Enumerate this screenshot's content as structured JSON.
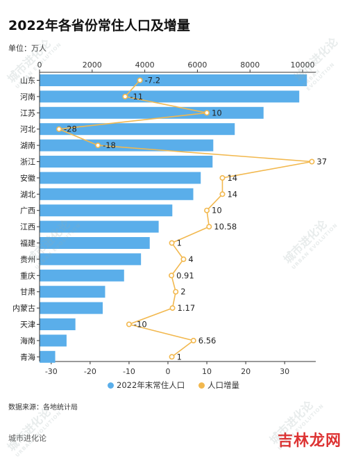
{
  "header": {
    "title": "2022年各省份常住人口及增量",
    "unit": "单位：万人"
  },
  "legend": {
    "bar_label": "2022年末常住人口",
    "line_label": "人口增量"
  },
  "footer": {
    "source": "数据来源：各地统计局",
    "org": "城市进化论",
    "brand": "吉林龙网"
  },
  "watermark": {
    "cn": "城市进化论",
    "en": "URBAN EVOLUTION"
  },
  "colors": {
    "bar": "#5aaeea",
    "line": "#f2b84e",
    "axis": "#333333"
  },
  "chart_data": {
    "type": "bar",
    "orientation": "horizontal",
    "categories": [
      "山东",
      "河南",
      "江苏",
      "河北",
      "湖南",
      "浙江",
      "安徽",
      "湖北",
      "广西",
      "江西",
      "福建",
      "贵州",
      "重庆",
      "甘肃",
      "内蒙古",
      "天津",
      "海南",
      "青海"
    ],
    "series": [
      {
        "name": "2022年末常住人口",
        "type": "bar",
        "axis": "top",
        "values": [
          10163,
          9872,
          8515,
          7420,
          6604,
          6577,
          6127,
          5844,
          5047,
          4528,
          4188,
          3856,
          3213,
          2492,
          2401,
          1363,
          1027,
          595
        ]
      },
      {
        "name": "人口增量",
        "type": "line",
        "axis": "bottom",
        "values": [
          -7.2,
          -11,
          10,
          -28,
          -18,
          37,
          14,
          14,
          10,
          10.58,
          1,
          4,
          0.91,
          2,
          1.17,
          -10,
          6.56,
          1
        ],
        "labels": [
          "-7.2",
          "-11",
          "10",
          "-28",
          "-18",
          "37",
          "14",
          "14",
          "10",
          "10.58",
          "1",
          "4",
          "0.91",
          "2",
          "1.17",
          "-10",
          "6.56",
          "1"
        ]
      }
    ],
    "top_axis": {
      "range": [
        0,
        10500
      ],
      "ticks": [
        0,
        2000,
        4000,
        6000,
        8000,
        10000
      ],
      "tick_labels": [
        "0",
        "2000",
        "4000",
        "6000",
        "8000",
        "10000"
      ]
    },
    "bottom_axis": {
      "range": [
        -33,
        38
      ],
      "ticks": [
        -30,
        -20,
        -10,
        0,
        10,
        20,
        30
      ],
      "tick_labels": [
        "-30",
        "-20",
        "-10",
        "0",
        "10",
        "20",
        "30"
      ]
    },
    "grid": false,
    "legend_position": "bottom-center"
  }
}
